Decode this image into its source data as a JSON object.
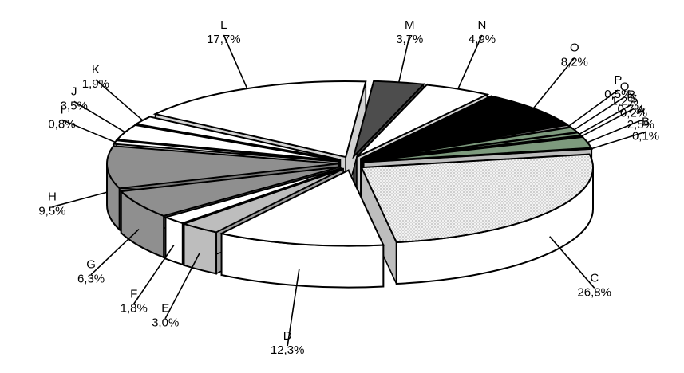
{
  "chart_data": {
    "type": "pie",
    "variant": "3d-exploded",
    "title": "",
    "categories": [
      "A",
      "B",
      "C",
      "D",
      "E",
      "F",
      "G",
      "H",
      "I",
      "J",
      "K",
      "L",
      "M",
      "N",
      "O",
      "P",
      "Q",
      "R",
      "S"
    ],
    "values": [
      2.5,
      0.1,
      26.8,
      12.3,
      3.0,
      1.8,
      6.3,
      9.5,
      0.8,
      3.5,
      1.9,
      17.7,
      3.7,
      4.9,
      8.2,
      0.5,
      1.2,
      0.7,
      0.2
    ],
    "data_labels": [
      "2,5%",
      "0,1%",
      "26,8%",
      "12,3%",
      "3,0%",
      "1,8%",
      "6,3%",
      "9,5%",
      "0,8%",
      "3,5%",
      "1,9%",
      "17,7%",
      "3,7%",
      "4,9%",
      "8,2%",
      "0,5%",
      "1,2%",
      "0,7%",
      "0,2%"
    ],
    "colors": [
      "#7d9a7d",
      "#e6e6e6",
      "#e6e6e6",
      "#ffffff",
      "#bdbdbd",
      "#ffffff",
      "#8f8f8f",
      "#8f8f8f",
      "#ffffff",
      "#ffffff",
      "#ffffff",
      "#ffffff",
      "#4d4d4d",
      "#ffffff",
      "#000000",
      "#9a9a9a",
      "#7d9a7d",
      "#7d9a7d",
      "#ffffff"
    ],
    "legend": "none",
    "grid": false
  }
}
